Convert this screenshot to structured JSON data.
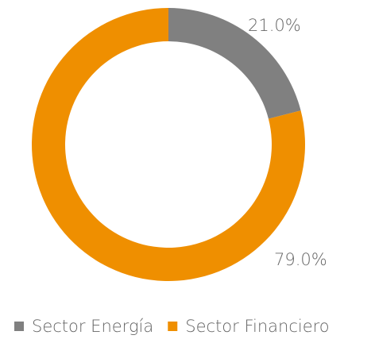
{
  "chart_data": {
    "type": "donut",
    "categories": [
      "Sector Energía",
      "Sector Financiero"
    ],
    "values": [
      21.0,
      79.0
    ],
    "value_labels": [
      "21.0%",
      "79.0%"
    ],
    "colors": [
      "#808080",
      "#ef8f00"
    ],
    "legend": "bottom"
  }
}
